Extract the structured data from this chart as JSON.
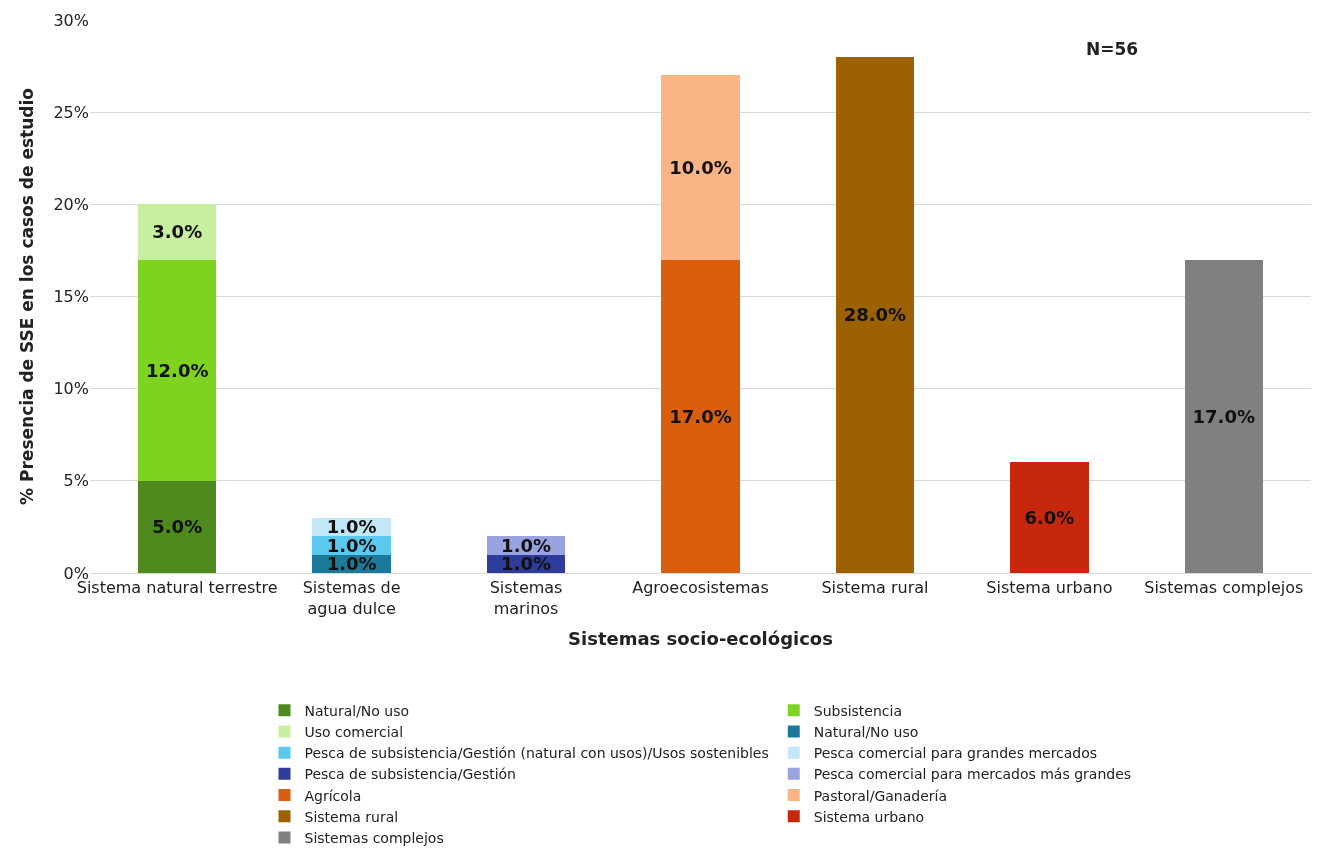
{
  "chart_data": {
    "type": "bar",
    "stacked": true,
    "xlabel": "Sistemas socio-ecológicos",
    "ylabel": "% Presencia de SSE en los casos de estudio",
    "categories": [
      "Sistema natural terrestre",
      "Sistemas de agua dulce",
      "Sistemas marinos",
      "Agroecosistemas",
      "Sistema rural",
      "Sistema urbano",
      "Sistemas complejos"
    ],
    "series": [
      {
        "name": "Natural/No uso",
        "color": "#4e8a1e",
        "values": [
          5,
          null,
          null,
          null,
          null,
          null,
          null
        ],
        "value_labels": [
          "5.0%",
          null,
          null,
          null,
          null,
          null,
          null
        ]
      },
      {
        "name": "Subsistencia",
        "color": "#7ed321",
        "values": [
          12,
          null,
          null,
          null,
          null,
          null,
          null
        ],
        "value_labels": [
          "12.0%",
          null,
          null,
          null,
          null,
          null,
          null
        ]
      },
      {
        "name": "Uso comercial",
        "color": "#c6efa0",
        "values": [
          3,
          null,
          null,
          null,
          null,
          null,
          null
        ],
        "value_labels": [
          "3.0%",
          null,
          null,
          null,
          null,
          null,
          null
        ]
      },
      {
        "name": "Natural/No uso",
        "color": "#1b7a9a",
        "values": [
          null,
          1,
          null,
          null,
          null,
          null,
          null
        ],
        "value_labels": [
          null,
          "1.0%",
          null,
          null,
          null,
          null,
          null
        ]
      },
      {
        "name": "Pesca de subsistencia/Gestión (natural con usos)/Usos sostenibles",
        "color": "#5bc8ee",
        "values": [
          null,
          1,
          null,
          null,
          null,
          null,
          null
        ],
        "value_labels": [
          null,
          "1.0%",
          null,
          null,
          null,
          null,
          null
        ]
      },
      {
        "name": "Pesca comercial para grandes mercados",
        "color": "#c2e8f7",
        "values": [
          null,
          1,
          null,
          null,
          null,
          null,
          null
        ],
        "value_labels": [
          null,
          "1.0%",
          null,
          null,
          null,
          null,
          null
        ]
      },
      {
        "name": "Pesca de subsistencia/Gestión",
        "color": "#2e3d9c",
        "values": [
          null,
          null,
          1,
          null,
          null,
          null,
          null
        ],
        "value_labels": [
          null,
          null,
          "1.0%",
          null,
          null,
          null,
          null
        ]
      },
      {
        "name": "Pesca comercial para mercados más grandes",
        "color": "#99a3e0",
        "values": [
          null,
          null,
          1,
          null,
          null,
          null,
          null
        ],
        "value_labels": [
          null,
          null,
          "1.0%",
          null,
          null,
          null,
          null
        ]
      },
      {
        "name": "Agrícola",
        "color": "#d95f0e",
        "values": [
          null,
          null,
          null,
          17,
          null,
          null,
          null
        ],
        "value_labels": [
          null,
          null,
          null,
          "17.0%",
          null,
          null,
          null
        ]
      },
      {
        "name": "Pastoral/Ganadería",
        "color": "#fbb584",
        "values": [
          null,
          null,
          null,
          10,
          null,
          null,
          null
        ],
        "value_labels": [
          null,
          null,
          null,
          "10.0%",
          null,
          null,
          null
        ]
      },
      {
        "name": "Sistema rural",
        "color": "#9c6100",
        "values": [
          null,
          null,
          null,
          null,
          28,
          null,
          null
        ],
        "value_labels": [
          null,
          null,
          null,
          null,
          "28.0%",
          null,
          null
        ]
      },
      {
        "name": "Sistema urbano",
        "color": "#c5280c",
        "values": [
          null,
          null,
          null,
          null,
          null,
          6,
          null
        ],
        "value_labels": [
          null,
          null,
          null,
          null,
          null,
          "6.0%",
          null
        ]
      },
      {
        "name": "Sistemas complejos",
        "color": "#808080",
        "values": [
          null,
          null,
          null,
          null,
          null,
          null,
          17
        ],
        "value_labels": [
          null,
          null,
          null,
          null,
          null,
          null,
          "17.0%"
        ]
      }
    ],
    "ylim": [
      0,
      30
    ],
    "yticks": [
      {
        "value": 0,
        "label": "0%"
      },
      {
        "value": 5,
        "label": "5%"
      },
      {
        "value": 10,
        "label": "10%"
      },
      {
        "value": 15,
        "label": "15%"
      },
      {
        "value": 20,
        "label": "20%"
      },
      {
        "value": 25,
        "label": "25%"
      },
      {
        "value": 30,
        "label": "30%"
      }
    ],
    "grid": "y",
    "legend": "bottom",
    "annotations": [
      "N=56"
    ]
  }
}
